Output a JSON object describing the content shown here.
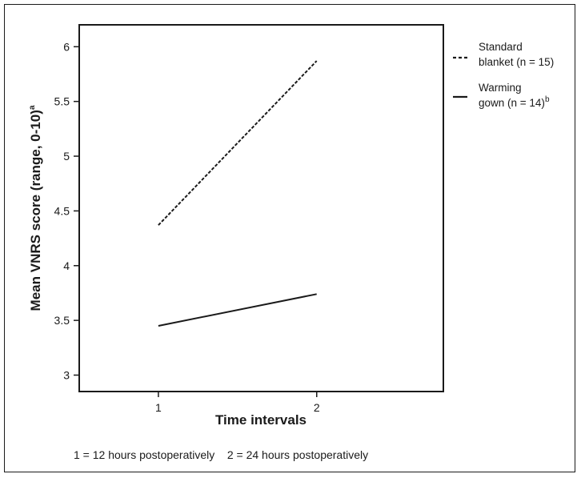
{
  "chart_data": {
    "type": "line",
    "x": [
      1,
      2
    ],
    "xticks": [
      1,
      2
    ],
    "yticks": [
      3,
      3.5,
      4,
      4.5,
      5,
      5.5,
      6
    ],
    "ytick_labels": [
      "3",
      "3.5",
      "4",
      "4.5",
      "5",
      "5.5",
      "6"
    ],
    "xlim": [
      0.5,
      2.8
    ],
    "ylim": [
      2.85,
      6.2
    ],
    "xlabel": "Time intervals",
    "ylabel": "Mean VNRS score (range, 0-10)",
    "ylabel_sup": "a",
    "grid": false,
    "legend_position": "outside right, top",
    "series": [
      {
        "name_line1": "Standard",
        "name_line2": "blanket (n = 15)",
        "name_sup": "",
        "style": "dashed",
        "values": [
          4.37,
          5.87
        ]
      },
      {
        "name_line1": "Warming",
        "name_line2": "gown (n = 14)",
        "name_sup": "b",
        "style": "solid",
        "values": [
          3.45,
          3.74
        ]
      }
    ],
    "footnote": "1 = 12 hours postoperatively    2 = 24 hours postoperatively"
  }
}
